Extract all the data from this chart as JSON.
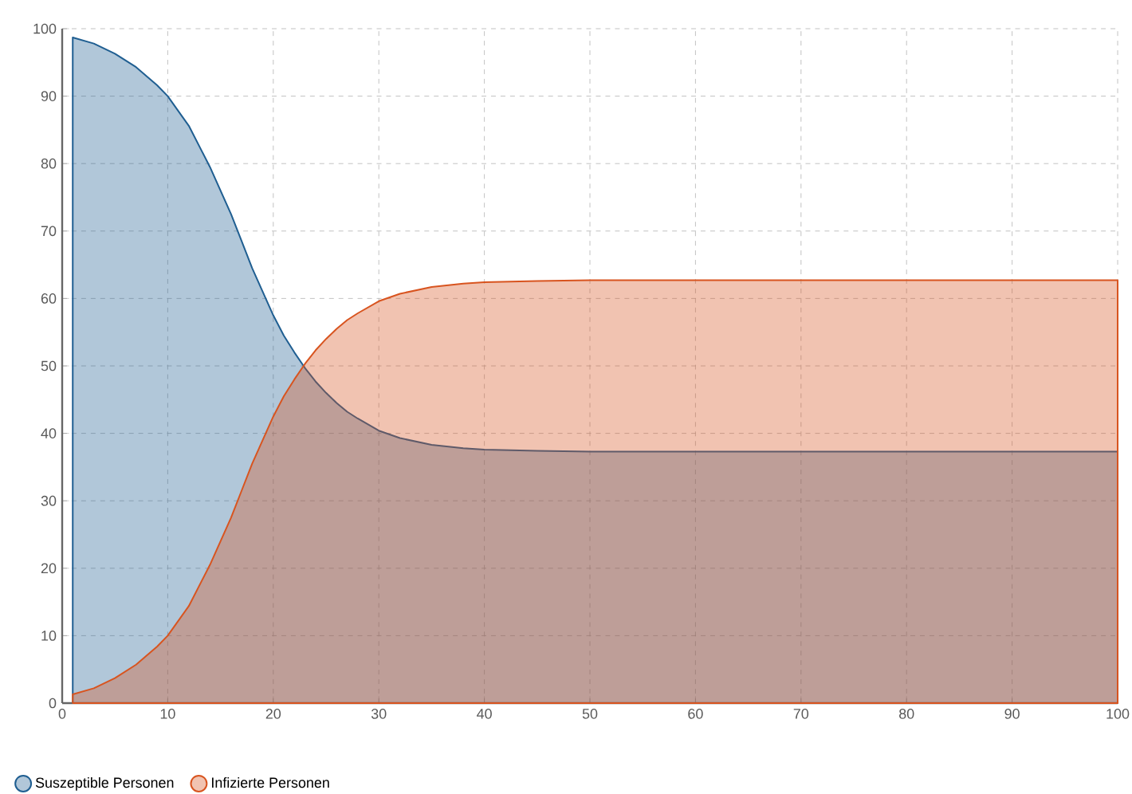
{
  "chart_data": {
    "type": "area",
    "xlim": [
      0,
      100
    ],
    "ylim": [
      0,
      100
    ],
    "xticks": [
      0,
      10,
      20,
      30,
      40,
      50,
      60,
      70,
      80,
      90,
      100
    ],
    "yticks": [
      0,
      10,
      20,
      30,
      40,
      50,
      60,
      70,
      80,
      90,
      100
    ],
    "grid": true,
    "legend": "bottom left",
    "series": [
      {
        "name": "Suszeptible Personen",
        "color": "#1f5e91",
        "x": [
          1,
          3,
          5,
          7,
          9,
          10,
          12,
          14,
          16,
          17,
          18,
          19,
          20,
          21,
          22,
          23,
          24,
          25,
          26,
          27,
          28,
          30,
          32,
          35,
          38,
          40,
          45,
          50,
          60,
          70,
          80,
          90,
          100
        ],
        "values": [
          98.7,
          97.8,
          96.3,
          94.3,
          91.6,
          90,
          85.6,
          79.5,
          72.5,
          68.5,
          64.5,
          61,
          57.5,
          54.5,
          52,
          49.7,
          47.7,
          46,
          44.5,
          43.2,
          42.2,
          40.4,
          39.3,
          38.3,
          37.8,
          37.6,
          37.4,
          37.3,
          37.3,
          37.3,
          37.3,
          37.3,
          37.3
        ]
      },
      {
        "name": "Infizierte Personen",
        "color": "#d8541f",
        "x": [
          1,
          3,
          5,
          7,
          9,
          10,
          12,
          14,
          16,
          17,
          18,
          19,
          20,
          21,
          22,
          23,
          24,
          25,
          26,
          27,
          28,
          30,
          32,
          35,
          38,
          40,
          45,
          50,
          60,
          70,
          80,
          90,
          100
        ],
        "values": [
          1.3,
          2.2,
          3.7,
          5.7,
          8.4,
          10,
          14.4,
          20.5,
          27.5,
          31.5,
          35.5,
          39,
          42.5,
          45.5,
          48,
          50.3,
          52.3,
          54,
          55.5,
          56.8,
          57.8,
          59.6,
          60.7,
          61.7,
          62.2,
          62.4,
          62.6,
          62.7,
          62.7,
          62.7,
          62.7,
          62.7,
          62.7
        ]
      }
    ]
  }
}
